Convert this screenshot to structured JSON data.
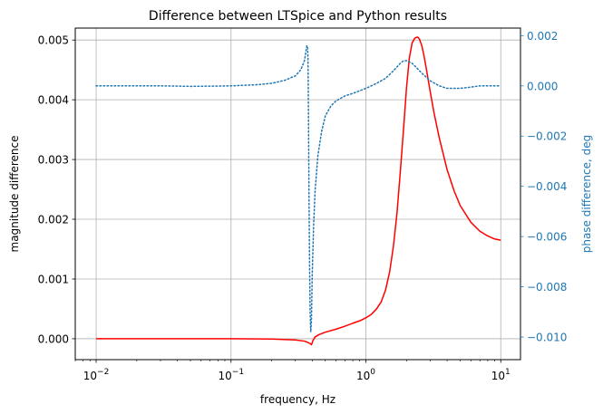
{
  "chart_data": {
    "type": "line",
    "title": "Difference between LTSpice and Python results",
    "xlabel": "frequency, Hz",
    "ylabel_left": "magnitude difference",
    "ylabel_right": "phase difference, deg",
    "x_scale": "log",
    "xlim": [
      0.007,
      14
    ],
    "ylim_left": [
      -0.00035,
      0.0052
    ],
    "ylim_right": [
      -0.0109,
      0.0023
    ],
    "grid": true,
    "x_ticks": [
      {
        "value": 0.01,
        "base": "10",
        "exp": "−2"
      },
      {
        "value": 0.1,
        "base": "10",
        "exp": "−1"
      },
      {
        "value": 1,
        "base": "10",
        "exp": "0"
      },
      {
        "value": 10,
        "base": "10",
        "exp": "1"
      }
    ],
    "y_left_ticks": [
      {
        "value": 0.0,
        "label": "0.000"
      },
      {
        "value": 0.001,
        "label": "0.001"
      },
      {
        "value": 0.002,
        "label": "0.002"
      },
      {
        "value": 0.003,
        "label": "0.003"
      },
      {
        "value": 0.004,
        "label": "0.004"
      },
      {
        "value": 0.005,
        "label": "0.005"
      }
    ],
    "y_right_ticks": [
      {
        "value": 0.002,
        "label": "0.002"
      },
      {
        "value": 0.0,
        "label": "0.000"
      },
      {
        "value": -0.002,
        "label": "−0.002"
      },
      {
        "value": -0.004,
        "label": "−0.004"
      },
      {
        "value": -0.006,
        "label": "−0.006"
      },
      {
        "value": -0.008,
        "label": "−0.008"
      },
      {
        "value": -0.01,
        "label": "−0.010"
      }
    ],
    "colors": {
      "magnitude": "#ff0000",
      "phase": "#1f77b4",
      "grid": "#b0b0b0",
      "axis": "#000000"
    },
    "series": [
      {
        "axis": "left",
        "style": "solid",
        "x": [
          0.01,
          0.05,
          0.1,
          0.2,
          0.3,
          0.35,
          0.37,
          0.385,
          0.395,
          0.405,
          0.42,
          0.45,
          0.5,
          0.6,
          0.7,
          0.8,
          0.9,
          1.0,
          1.1,
          1.2,
          1.3,
          1.4,
          1.5,
          1.6,
          1.7,
          1.8,
          1.9,
          2.0,
          2.1,
          2.2,
          2.3,
          2.4,
          2.45,
          2.5,
          2.6,
          2.7,
          2.8,
          3.0,
          3.2,
          3.5,
          4.0,
          4.5,
          5.0,
          6.0,
          7.0,
          8.0,
          9.0,
          10.0
        ],
        "y": [
          0.0,
          0.0,
          0.0,
          -5e-06,
          -2e-05,
          -4e-05,
          -6e-05,
          -8e-05,
          -0.0001,
          -3e-05,
          3e-05,
          7e-05,
          0.00011,
          0.00016,
          0.00021,
          0.00026,
          0.0003,
          0.00035,
          0.00041,
          0.0005,
          0.00062,
          0.00082,
          0.00112,
          0.00155,
          0.0021,
          0.0028,
          0.0035,
          0.0042,
          0.0047,
          0.00495,
          0.00503,
          0.00505,
          0.00504,
          0.00501,
          0.0049,
          0.00473,
          0.00453,
          0.00413,
          0.00378,
          0.00336,
          0.00283,
          0.00248,
          0.00223,
          0.00195,
          0.0018,
          0.00172,
          0.00167,
          0.00165
        ]
      },
      {
        "axis": "right",
        "style": "dotted",
        "x": [
          0.01,
          0.03,
          0.05,
          0.08,
          0.1,
          0.15,
          0.2,
          0.25,
          0.3,
          0.33,
          0.35,
          0.36,
          0.365,
          0.37,
          0.372,
          0.375,
          0.378,
          0.382,
          0.386,
          0.39,
          0.395,
          0.4,
          0.41,
          0.42,
          0.44,
          0.47,
          0.5,
          0.55,
          0.6,
          0.7,
          0.8,
          1.0,
          1.2,
          1.4,
          1.6,
          1.8,
          1.9,
          2.0,
          2.2,
          2.4,
          2.6,
          3.0,
          3.5,
          4.0,
          5.0,
          6.0,
          7.0,
          8.0,
          10.0
        ],
        "y": [
          0.0,
          0.0,
          -2e-05,
          -1e-05,
          0.0,
          4e-05,
          0.0001,
          0.00022,
          0.0004,
          0.00065,
          0.001,
          0.0014,
          0.0016,
          0.0015,
          0.0011,
          -0.001,
          -0.004,
          -0.007,
          -0.009,
          -0.0098,
          -0.0093,
          -0.0075,
          -0.0055,
          -0.0042,
          -0.0028,
          -0.0018,
          -0.0012,
          -0.0008,
          -0.0006,
          -0.0004,
          -0.0003,
          -0.0001,
          0.0001,
          0.0003,
          0.0006,
          0.0009,
          0.001,
          0.001,
          0.0009,
          0.0007,
          0.0005,
          0.0002,
          0.0,
          -0.0001,
          -0.0001,
          -5e-05,
          0.0,
          0.0,
          0.0
        ]
      }
    ]
  }
}
